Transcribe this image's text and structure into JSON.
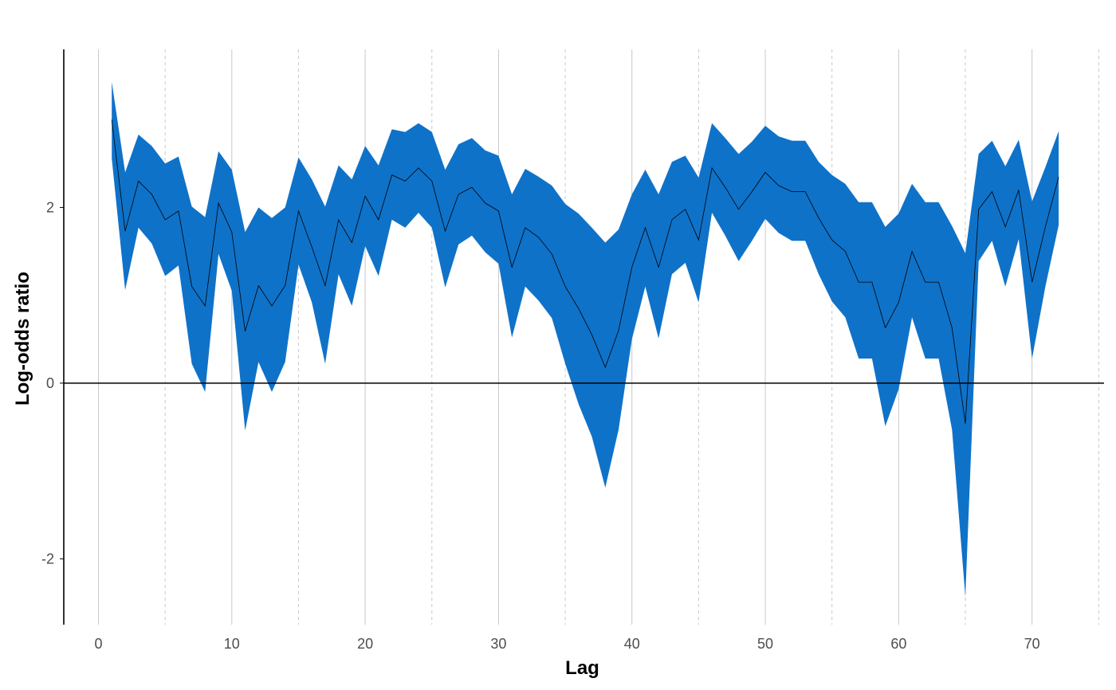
{
  "chart_data": {
    "type": "area",
    "title": "",
    "xlabel": "Lag",
    "ylabel": "Log-odds ratio",
    "xlim": [
      -2.6,
      75.4
    ],
    "ylim": [
      -2.75,
      3.8
    ],
    "xticks": [
      0,
      10,
      20,
      30,
      40,
      50,
      60,
      70
    ],
    "yticks": [
      -2,
      0,
      2
    ],
    "x_minor_ticks": [
      5,
      15,
      25,
      35,
      45,
      55,
      65,
      75
    ],
    "grid": true,
    "reference_line_y": 0,
    "fill_color": "#0f72c9",
    "line_color": "#000000",
    "x": [
      1,
      2,
      3,
      4,
      5,
      6,
      7,
      8,
      9,
      10,
      11,
      12,
      13,
      14,
      15,
      16,
      17,
      18,
      19,
      20,
      21,
      22,
      23,
      24,
      25,
      26,
      27,
      28,
      29,
      30,
      31,
      32,
      33,
      34,
      35,
      36,
      37,
      38,
      39,
      40,
      41,
      42,
      43,
      44,
      45,
      46,
      47,
      48,
      49,
      50,
      51,
      52,
      53,
      54,
      55,
      56,
      57,
      58,
      59,
      60,
      61,
      62,
      63,
      64,
      65,
      66,
      67,
      68,
      69,
      70,
      71,
      72
    ],
    "series": [
      {
        "role": "estimate",
        "values": [
          3.0,
          1.73,
          2.3,
          2.15,
          1.86,
          1.96,
          1.1,
          0.88,
          2.05,
          1.72,
          0.59,
          1.11,
          0.88,
          1.11,
          1.96,
          1.55,
          1.11,
          1.86,
          1.6,
          2.13,
          1.86,
          2.37,
          2.3,
          2.45,
          2.3,
          1.73,
          2.15,
          2.23,
          2.05,
          1.96,
          1.32,
          1.77,
          1.66,
          1.47,
          1.1,
          0.85,
          0.55,
          0.18,
          0.6,
          1.32,
          1.77,
          1.32,
          1.86,
          1.98,
          1.63,
          2.45,
          2.23,
          1.98,
          2.18,
          2.4,
          2.25,
          2.18,
          2.18,
          1.88,
          1.63,
          1.5,
          1.15,
          1.15,
          0.63,
          0.92,
          1.5,
          1.15,
          1.15,
          0.63,
          -0.46,
          1.98,
          2.18,
          1.78,
          2.2,
          1.15,
          1.78,
          2.35
        ]
      },
      {
        "role": "upper",
        "values": [
          3.43,
          2.4,
          2.83,
          2.7,
          2.5,
          2.58,
          2.01,
          1.89,
          2.64,
          2.43,
          1.72,
          2.0,
          1.88,
          2.0,
          2.57,
          2.32,
          2.01,
          2.48,
          2.32,
          2.7,
          2.48,
          2.89,
          2.86,
          2.96,
          2.86,
          2.43,
          2.72,
          2.79,
          2.65,
          2.59,
          2.15,
          2.44,
          2.35,
          2.25,
          2.04,
          1.93,
          1.77,
          1.6,
          1.75,
          2.15,
          2.43,
          2.15,
          2.52,
          2.59,
          2.34,
          2.96,
          2.79,
          2.61,
          2.75,
          2.93,
          2.81,
          2.76,
          2.76,
          2.52,
          2.37,
          2.27,
          2.06,
          2.06,
          1.78,
          1.93,
          2.27,
          2.06,
          2.06,
          1.79,
          1.48,
          2.61,
          2.76,
          2.47,
          2.77,
          2.07,
          2.46,
          2.87
        ]
      },
      {
        "role": "lower",
        "values": [
          2.56,
          1.06,
          1.77,
          1.59,
          1.22,
          1.34,
          0.22,
          -0.1,
          1.47,
          1.05,
          -0.54,
          0.24,
          -0.1,
          0.24,
          1.35,
          0.92,
          0.22,
          1.24,
          0.88,
          1.56,
          1.22,
          1.86,
          1.77,
          1.94,
          1.77,
          1.09,
          1.58,
          1.68,
          1.49,
          1.36,
          0.52,
          1.1,
          0.94,
          0.74,
          0.22,
          -0.24,
          -0.61,
          -1.19,
          -0.53,
          0.5,
          1.1,
          0.51,
          1.24,
          1.37,
          0.92,
          1.94,
          1.68,
          1.39,
          1.62,
          1.87,
          1.71,
          1.62,
          1.62,
          1.24,
          0.93,
          0.75,
          0.28,
          0.28,
          -0.49,
          -0.07,
          0.75,
          0.28,
          0.28,
          -0.53,
          -2.43,
          1.39,
          1.62,
          1.1,
          1.64,
          0.28,
          1.1,
          1.8
        ]
      }
    ]
  }
}
